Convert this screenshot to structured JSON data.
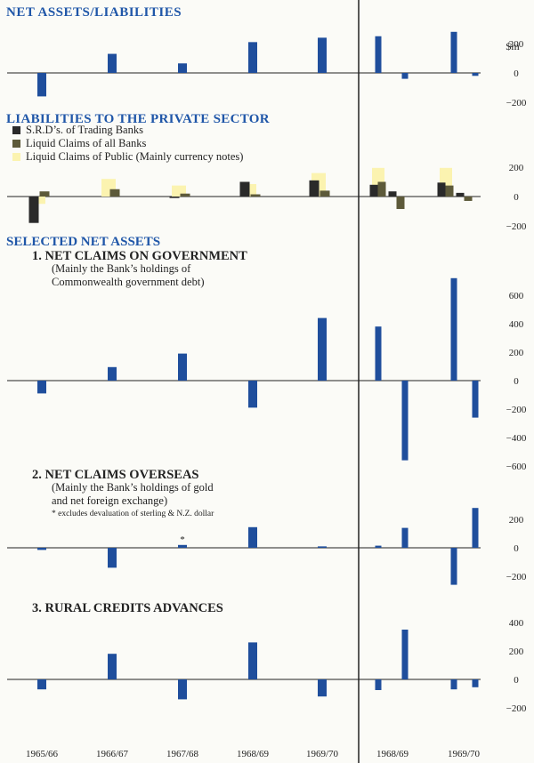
{
  "colors": {
    "background": "#fbfbf7",
    "blue": "#1f4e9c",
    "title_blue": "#1f56a8",
    "black_bar": "#2a2a2a",
    "olive": "#5d5a3a",
    "light_yellow": "#fbf3b0",
    "axis": "#222222",
    "text": "#222222"
  },
  "chart_data": {
    "type": "bar",
    "unit_label": "$m",
    "categories": [
      "1965/66",
      "1966/67",
      "1967/68",
      "1968/69",
      "1969/70"
    ],
    "quarterly_labels": [
      "1968/69",
      "1969/70"
    ],
    "footnote_marker": "*",
    "panels": [
      {
        "title": "NET ASSETS/LIABILITIES",
        "ylim": [
          -200,
          200
        ],
        "yticks": [
          "200",
          "0",
          "−200"
        ],
        "annual": [
          {
            "name": "net",
            "color": "blue",
            "values": [
              -160,
              130,
              65,
              210,
              240
            ]
          }
        ],
        "quarterly": [
          {
            "name": "net",
            "color": "blue",
            "values": [
              250,
              -40,
              280,
              -20
            ]
          }
        ]
      },
      {
        "title": "LIABILITIES TO THE PRIVATE SECTOR",
        "legend": [
          {
            "label": "S.R.D’s. of Trading Banks",
            "color": "black_bar"
          },
          {
            "label": "Liquid Claims of all Banks",
            "color": "olive"
          },
          {
            "label": "Liquid Claims of Public (Mainly currency notes)",
            "color": "light_yellow"
          }
        ],
        "ylim": [
          -200,
          200
        ],
        "yticks": [
          "200",
          "0",
          "−200"
        ],
        "annual": [
          {
            "name": "S.R.D’s. of Trading Banks",
            "color": "black_bar",
            "values": [
              -180,
              0,
              -10,
              100,
              110
            ]
          },
          {
            "name": "Liquid Claims of all Banks",
            "color": "olive",
            "values": [
              35,
              50,
              20,
              15,
              40
            ]
          },
          {
            "name": "Liquid Claims of Public (Mainly currency notes)",
            "color": "light_yellow",
            "values": [
              -50,
              120,
              75,
              85,
              160
            ]
          }
        ],
        "quarterly": [
          {
            "name": "S.R.D’s. of Trading Banks",
            "color": "black_bar",
            "values": [
              80,
              35,
              95,
              25
            ]
          },
          {
            "name": "Liquid Claims of all Banks",
            "color": "olive",
            "values": [
              100,
              -85,
              75,
              -30
            ]
          },
          {
            "name": "Liquid Claims of Public (Mainly currency notes)",
            "color": "light_yellow",
            "values": [
              195,
              0,
              195,
              0
            ]
          }
        ]
      },
      {
        "section_heading": "SELECTED NET ASSETS",
        "title": "1. NET CLAIMS ON GOVERNMENT",
        "subtitle": [
          "(Mainly the Bank’s holdings of",
          "Commonwealth government debt)"
        ],
        "ylim": [
          -600,
          600
        ],
        "yticks": [
          "600",
          "400",
          "200",
          "0",
          "−200",
          "−400",
          "−600"
        ],
        "annual": [
          {
            "name": "net",
            "color": "blue",
            "values": [
              -90,
              95,
              190,
              -190,
              440
            ]
          }
        ],
        "quarterly": [
          {
            "name": "net",
            "color": "blue",
            "values": [
              380,
              -560,
              720,
              -260
            ]
          }
        ]
      },
      {
        "title": "2. NET CLAIMS OVERSEAS",
        "subtitle": [
          "(Mainly the Bank’s holdings of gold",
          "and net foreign exchange)"
        ],
        "footnote": "* excludes devaluation of sterling & N.Z. dollar",
        "ylim": [
          -200,
          200
        ],
        "yticks": [
          "200",
          "0",
          "−200"
        ],
        "annual": [
          {
            "name": "net",
            "color": "blue",
            "values": [
              -15,
              -140,
              20,
              145,
              10
            ]
          }
        ],
        "quarterly": [
          {
            "name": "net",
            "color": "blue",
            "values": [
              15,
              140,
              -260,
              280
            ]
          }
        ]
      },
      {
        "title": "3. RURAL CREDITS ADVANCES",
        "ylim": [
          -200,
          400
        ],
        "yticks": [
          "400",
          "200",
          "0",
          "−200"
        ],
        "annual": [
          {
            "name": "net",
            "color": "blue",
            "values": [
              -70,
              180,
              -140,
              260,
              -120
            ]
          }
        ],
        "quarterly": [
          {
            "name": "net",
            "color": "blue",
            "values": [
              -75,
              350,
              -70,
              -55
            ]
          }
        ]
      }
    ]
  }
}
